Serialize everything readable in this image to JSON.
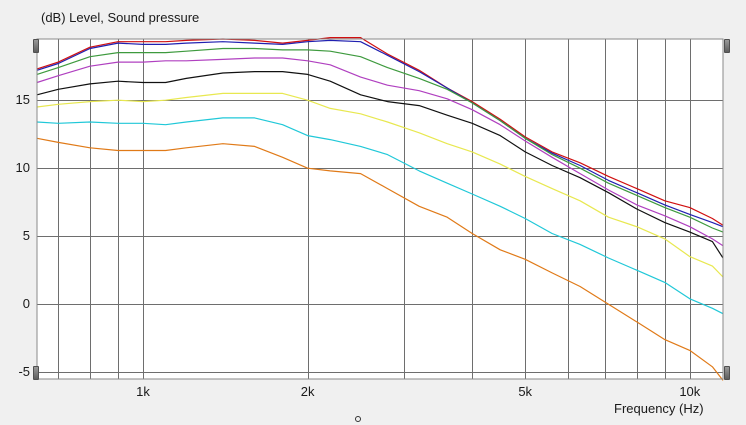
{
  "window": {
    "y_axis_label": "(dB)  Level, Sound pressure",
    "x_axis_label": "Frequency  (Hz)"
  },
  "colors": {
    "background": "#ffffff",
    "grid": "#6e6e6e"
  },
  "chart_data": {
    "type": "line",
    "title": "",
    "xlabel": "Frequency (Hz)",
    "ylabel": "Level, Sound pressure (dB)",
    "xscale": "log",
    "xlim": [
      640,
      11500
    ],
    "ylim": [
      -5.5,
      19.5
    ],
    "grid": true,
    "yticks": [
      -5,
      0,
      5,
      10,
      15
    ],
    "ytick_labels": [
      "-5",
      "0",
      "5",
      "10",
      "15"
    ],
    "xticks": [
      1000,
      2000,
      5000,
      10000
    ],
    "xtick_labels": [
      "1k",
      "2k",
      "5k",
      "10k"
    ],
    "x": [
      640,
      700,
      800,
      900,
      1000,
      1100,
      1200,
      1400,
      1600,
      1800,
      2000,
      2200,
      2500,
      2800,
      3200,
      3600,
      4000,
      4500,
      5000,
      5600,
      6300,
      7100,
      8000,
      9000,
      10000,
      11000,
      11500
    ],
    "series": [
      {
        "color": "#d01010",
        "values": [
          17.3,
          17.8,
          18.9,
          19.3,
          19.3,
          19.3,
          19.4,
          19.5,
          19.4,
          19.2,
          19.4,
          19.6,
          19.6,
          18.4,
          17.2,
          15.9,
          14.9,
          13.6,
          12.3,
          11.2,
          10.4,
          9.4,
          8.5,
          7.6,
          7.1,
          6.3,
          5.8
        ]
      },
      {
        "color": "#2020b0",
        "values": [
          17.2,
          17.7,
          18.8,
          19.2,
          19.1,
          19.1,
          19.2,
          19.3,
          19.2,
          19.1,
          19.3,
          19.4,
          19.3,
          18.3,
          17.1,
          15.9,
          14.8,
          13.5,
          12.2,
          11.1,
          10.2,
          9.1,
          8.2,
          7.3,
          6.6,
          6.0,
          5.7
        ]
      },
      {
        "color": "#3e9a3e",
        "values": [
          16.9,
          17.4,
          18.2,
          18.5,
          18.5,
          18.5,
          18.6,
          18.8,
          18.8,
          18.7,
          18.7,
          18.6,
          18.2,
          17.4,
          16.6,
          15.8,
          14.8,
          13.5,
          12.2,
          11.0,
          10.0,
          8.9,
          8.0,
          7.1,
          6.4,
          5.6,
          5.3
        ]
      },
      {
        "color": "#b040c0",
        "values": [
          16.3,
          16.8,
          17.5,
          17.8,
          17.8,
          17.9,
          17.9,
          18.0,
          18.1,
          18.1,
          17.9,
          17.6,
          16.7,
          16.1,
          15.7,
          15.1,
          14.3,
          13.2,
          12.0,
          10.8,
          9.6,
          8.4,
          7.3,
          6.5,
          5.7,
          4.8,
          4.3
        ]
      },
      {
        "color": "#111111",
        "values": [
          15.4,
          15.8,
          16.2,
          16.4,
          16.3,
          16.3,
          16.6,
          17.0,
          17.1,
          17.1,
          16.9,
          16.4,
          15.4,
          14.9,
          14.6,
          13.9,
          13.3,
          12.4,
          11.2,
          10.2,
          9.3,
          8.2,
          7.0,
          6.0,
          5.3,
          4.6,
          3.4
        ]
      },
      {
        "color": "#e8e850",
        "values": [
          14.5,
          14.7,
          14.9,
          15.0,
          14.9,
          15.0,
          15.2,
          15.5,
          15.5,
          15.5,
          15.0,
          14.4,
          14.0,
          13.4,
          12.6,
          11.8,
          11.2,
          10.3,
          9.4,
          8.5,
          7.6,
          6.4,
          5.7,
          4.8,
          3.5,
          2.8,
          2.0
        ]
      },
      {
        "color": "#20c8d8",
        "values": [
          13.4,
          13.3,
          13.4,
          13.3,
          13.3,
          13.2,
          13.4,
          13.7,
          13.7,
          13.2,
          12.4,
          12.1,
          11.6,
          11.0,
          9.8,
          8.9,
          8.1,
          7.2,
          6.3,
          5.2,
          4.4,
          3.4,
          2.5,
          1.6,
          0.4,
          -0.3,
          -0.7
        ]
      },
      {
        "color": "#e07a18",
        "values": [
          12.2,
          11.9,
          11.5,
          11.3,
          11.3,
          11.3,
          11.5,
          11.8,
          11.6,
          10.8,
          10.0,
          9.8,
          9.6,
          8.5,
          7.2,
          6.4,
          5.2,
          4.0,
          3.3,
          2.3,
          1.3,
          0.0,
          -1.3,
          -2.6,
          -3.4,
          -4.6,
          -5.6
        ]
      }
    ]
  }
}
